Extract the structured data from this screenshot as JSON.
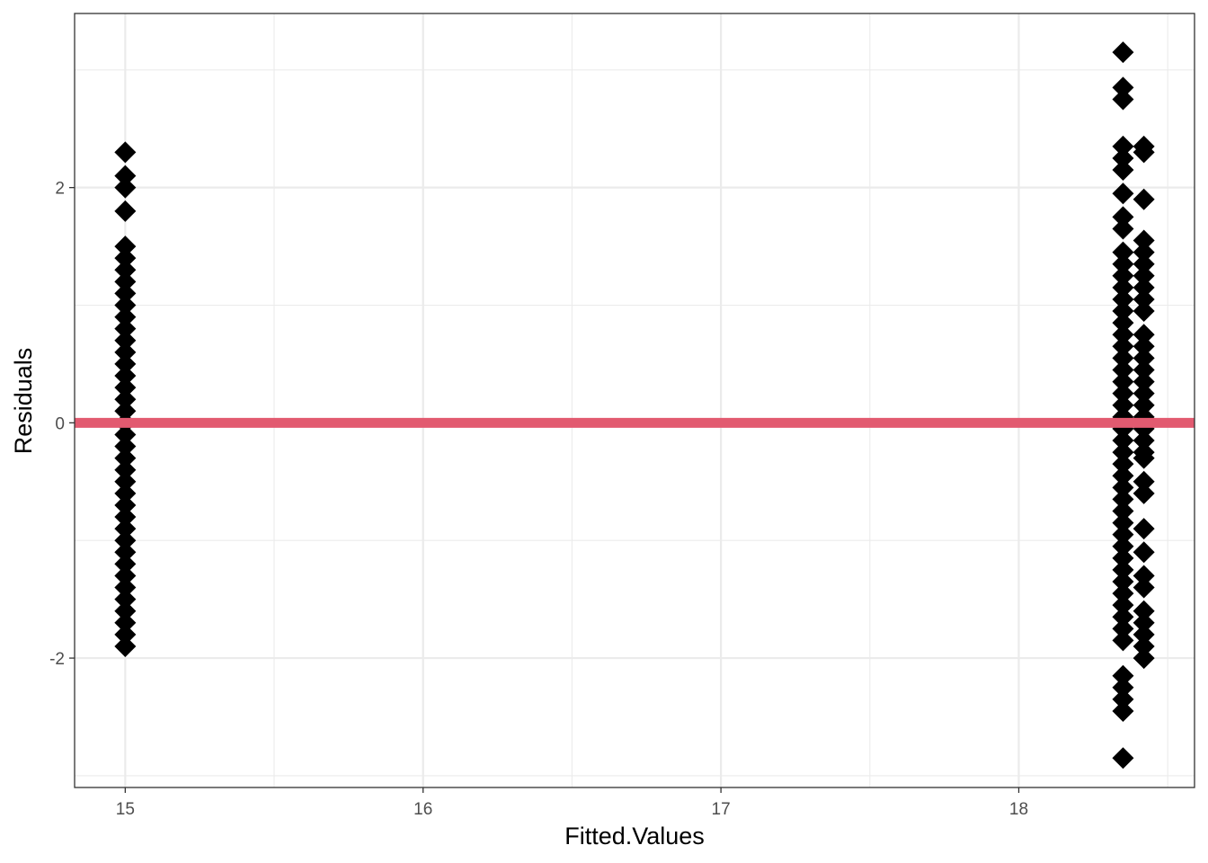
{
  "chart_data": {
    "type": "scatter",
    "title": "",
    "xlabel": "Fitted.Values",
    "ylabel": "Residuals",
    "xlim": [
      14.83,
      18.59
    ],
    "ylim": [
      -3.1,
      3.48
    ],
    "x_ticks": [
      15,
      16,
      17,
      18
    ],
    "x_tick_labels": [
      "15",
      "16",
      "17",
      "18"
    ],
    "y_ticks": [
      -2,
      0,
      2
    ],
    "y_tick_labels": [
      "-2",
      "0",
      "2"
    ],
    "grid": true,
    "theme": "bw",
    "marker": "diamond",
    "point_color": "#000000",
    "reference_line": {
      "y": 0,
      "color": "#E25A70"
    },
    "series": [
      {
        "x": 15.0,
        "y": [
          2.3,
          2.1,
          2.0,
          1.8,
          1.5,
          1.4,
          1.3,
          1.2,
          1.1,
          1.0,
          0.9,
          0.8,
          0.7,
          0.6,
          0.5,
          0.4,
          0.3,
          0.2,
          0.1,
          0.0,
          -0.1,
          -0.2,
          -0.3,
          -0.4,
          -0.5,
          -0.6,
          -0.7,
          -0.8,
          -0.9,
          -1.0,
          -1.1,
          -1.2,
          -1.3,
          -1.4,
          -1.5,
          -1.6,
          -1.7,
          -1.8,
          -1.9
        ]
      },
      {
        "x": 18.35,
        "y": [
          3.15,
          2.85,
          2.75,
          2.35,
          2.25,
          2.15,
          1.95,
          1.75,
          1.65,
          1.45,
          1.35,
          1.25,
          1.15,
          1.05,
          0.95,
          0.85,
          0.75,
          0.65,
          0.55,
          0.45,
          0.35,
          0.25,
          0.15,
          0.05,
          -0.05,
          -0.15,
          -0.25,
          -0.35,
          -0.45,
          -0.55,
          -0.65,
          -0.75,
          -0.85,
          -0.95,
          -1.05,
          -1.15,
          -1.25,
          -1.35,
          -1.45,
          -1.55,
          -1.65,
          -1.75,
          -1.85,
          -2.15,
          -2.25,
          -2.35,
          -2.45,
          -2.85
        ]
      },
      {
        "x": 18.42,
        "y": [
          2.35,
          2.3,
          1.9,
          1.55,
          1.45,
          1.35,
          1.25,
          1.15,
          1.05,
          0.95,
          0.75,
          0.65,
          0.55,
          0.45,
          0.35,
          0.25,
          0.15,
          0.05,
          -0.05,
          -0.15,
          -0.25,
          -0.3,
          -0.5,
          -0.6,
          -0.9,
          -1.1,
          -1.3,
          -1.4,
          -1.6,
          -1.7,
          -1.8,
          -1.9,
          -2.0
        ]
      }
    ]
  }
}
